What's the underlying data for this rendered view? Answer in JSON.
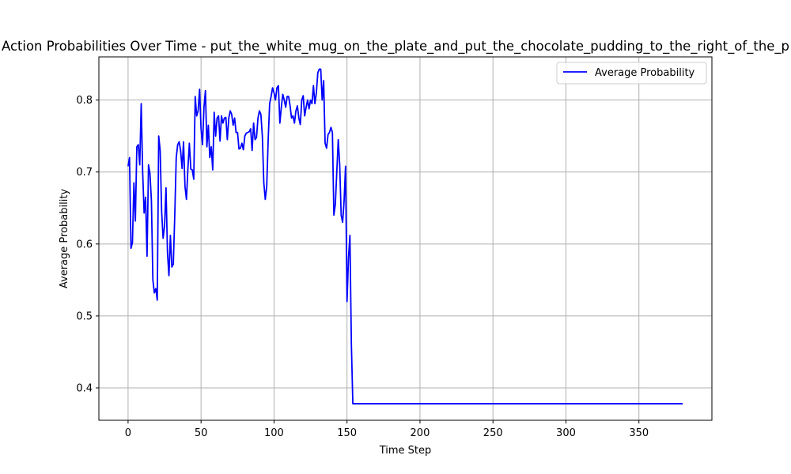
{
  "chart_data": {
    "type": "line",
    "title": "Action Probabilities Over Time - put_the_white_mug_on_the_plate_and_put_the_chocolate_pudding_to_the_right_of_the_p",
    "xlabel": "Time Step",
    "ylabel": "Average Probability",
    "xlim": [
      -20,
      400
    ],
    "ylim": [
      0.355,
      0.86
    ],
    "xticks": [
      0,
      50,
      100,
      150,
      200,
      250,
      300,
      350
    ],
    "yticks": [
      0.4,
      0.5,
      0.6,
      0.7,
      0.8
    ],
    "ytick_labels": [
      "0.4",
      "0.5",
      "0.6",
      "0.7",
      "0.8"
    ],
    "grid": true,
    "legend": {
      "placement": "top-right",
      "entries": [
        "Average Probability"
      ]
    },
    "series": [
      {
        "name": "Average Probability",
        "color": "#0000ff",
        "x": [
          0,
          1,
          2,
          3,
          4,
          5,
          6,
          7,
          8,
          9,
          10,
          11,
          12,
          13,
          14,
          15,
          16,
          17,
          18,
          19,
          20,
          21,
          22,
          23,
          24,
          25,
          26,
          27,
          28,
          29,
          30,
          31,
          32,
          33,
          34,
          35,
          36,
          37,
          38,
          39,
          40,
          41,
          42,
          43,
          44,
          45,
          46,
          47,
          48,
          49,
          50,
          51,
          52,
          53,
          54,
          55,
          56,
          57,
          58,
          59,
          60,
          61,
          62,
          63,
          64,
          65,
          66,
          67,
          68,
          69,
          70,
          71,
          72,
          73,
          74,
          75,
          76,
          77,
          78,
          79,
          80,
          81,
          82,
          83,
          84,
          85,
          86,
          87,
          88,
          89,
          90,
          91,
          92,
          93,
          94,
          95,
          96,
          97,
          98,
          99,
          100,
          101,
          102,
          103,
          104,
          105,
          106,
          107,
          108,
          109,
          110,
          111,
          112,
          113,
          114,
          115,
          116,
          117,
          118,
          119,
          120,
          121,
          122,
          123,
          124,
          125,
          126,
          127,
          128,
          129,
          130,
          131,
          132,
          133,
          134,
          135,
          136,
          137,
          138,
          139,
          140,
          141,
          142,
          143,
          144,
          145,
          146,
          147,
          148,
          149,
          150,
          151,
          152,
          153,
          154,
          155,
          380
        ],
        "y": [
          0.708,
          0.72,
          0.594,
          0.602,
          0.685,
          0.632,
          0.735,
          0.738,
          0.71,
          0.795,
          0.7,
          0.643,
          0.665,
          0.583,
          0.71,
          0.698,
          0.66,
          0.55,
          0.532,
          0.538,
          0.522,
          0.75,
          0.73,
          0.645,
          0.608,
          0.625,
          0.678,
          0.588,
          0.556,
          0.612,
          0.568,
          0.572,
          0.64,
          0.72,
          0.738,
          0.742,
          0.73,
          0.705,
          0.742,
          0.68,
          0.662,
          0.705,
          0.74,
          0.704,
          0.703,
          0.69,
          0.805,
          0.778,
          0.785,
          0.815,
          0.76,
          0.738,
          0.79,
          0.813,
          0.735,
          0.765,
          0.72,
          0.735,
          0.703,
          0.783,
          0.75,
          0.775,
          0.778,
          0.743,
          0.778,
          0.768,
          0.775,
          0.776,
          0.745,
          0.775,
          0.785,
          0.78,
          0.765,
          0.775,
          0.755,
          0.755,
          0.732,
          0.733,
          0.74,
          0.731,
          0.75,
          0.754,
          0.755,
          0.756,
          0.76,
          0.73,
          0.768,
          0.745,
          0.748,
          0.775,
          0.785,
          0.78,
          0.75,
          0.685,
          0.662,
          0.68,
          0.745,
          0.795,
          0.805,
          0.817,
          0.81,
          0.8,
          0.817,
          0.82,
          0.768,
          0.79,
          0.808,
          0.8,
          0.79,
          0.805,
          0.805,
          0.792,
          0.775,
          0.778,
          0.768,
          0.785,
          0.792,
          0.775,
          0.766,
          0.8,
          0.806,
          0.778,
          0.79,
          0.8,
          0.788,
          0.8,
          0.795,
          0.82,
          0.795,
          0.81,
          0.838,
          0.843,
          0.843,
          0.8,
          0.827,
          0.74,
          0.733,
          0.752,
          0.755,
          0.762,
          0.755,
          0.64,
          0.655,
          0.7,
          0.745,
          0.71,
          0.64,
          0.63,
          0.66,
          0.708,
          0.52,
          0.58,
          0.612,
          0.46,
          0.378,
          0.378,
          0.378
        ]
      }
    ]
  }
}
